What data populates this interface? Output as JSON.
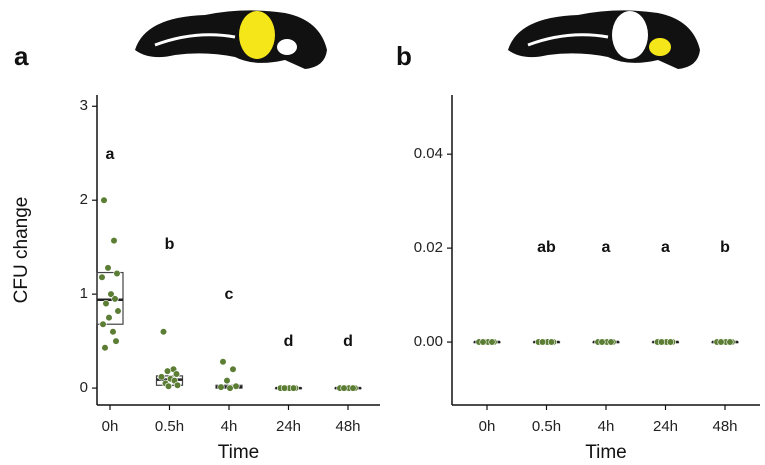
{
  "chart_data": [
    {
      "type": "box",
      "panel_label": "a",
      "y_label": "CFU change",
      "x_label": "Time",
      "categories": [
        "0h",
        "0.5h",
        "4h",
        "24h",
        "48h"
      ],
      "ylim": [
        -0.18,
        3.12
      ],
      "yticks": [
        0,
        1,
        2,
        3
      ],
      "point_color": "#5b7d34",
      "group_labels": [
        "a",
        "b",
        "c",
        "d",
        "d"
      ],
      "boxes": [
        {
          "q1": 0.68,
          "median": 0.94,
          "q3": 1.23
        },
        {
          "q1": 0.03,
          "median": 0.09,
          "q3": 0.13
        },
        {
          "q1": 0,
          "median": 0.01,
          "q3": 0.03
        },
        {
          "q1": 0,
          "median": 0,
          "q3": 0
        },
        {
          "q1": 0,
          "median": 0,
          "q3": 0
        }
      ],
      "points": [
        [
          2.0,
          1.57,
          1.28,
          1.22,
          1.18,
          1.0,
          0.95,
          0.9,
          0.82,
          0.75,
          0.68,
          0.6,
          0.5,
          0.43
        ],
        [
          0.6,
          0.2,
          0.18,
          0.15,
          0.12,
          0.1,
          0.08,
          0.05,
          0.03,
          0.02
        ],
        [
          0.28,
          0.2,
          0.08,
          0.02,
          0.01,
          0
        ],
        [
          0,
          0,
          0,
          0,
          0,
          0,
          0,
          0
        ],
        [
          0,
          0,
          0,
          0,
          0,
          0,
          0,
          0
        ]
      ]
    },
    {
      "type": "box",
      "panel_label": "b",
      "x_label": "Time",
      "categories": [
        "0h",
        "0.5h",
        "4h",
        "24h",
        "48h"
      ],
      "ylim": [
        -0.0134,
        0.0526
      ],
      "yticks": [
        {
          "value": 0,
          "label": "0.00"
        },
        {
          "value": 0.02,
          "label": "0.02"
        },
        {
          "value": 0.04,
          "label": "0.04"
        }
      ],
      "point_color": "#5b7d34",
      "group_labels": [
        null,
        "ab",
        "a",
        "a",
        "b"
      ],
      "boxes": [
        {
          "q1": 0,
          "median": 0,
          "q3": 0
        },
        {
          "q1": 0,
          "median": 0,
          "q3": 0
        },
        {
          "q1": 0,
          "median": 0,
          "q3": 0
        },
        {
          "q1": 0,
          "median": 0,
          "q3": 0
        },
        {
          "q1": 0,
          "median": 0,
          "q3": 0
        }
      ],
      "points": [
        [
          0,
          0,
          0,
          0,
          0,
          0,
          0,
          0
        ],
        [
          0,
          0,
          0,
          0,
          0,
          0,
          0,
          0
        ],
        [
          0,
          0,
          0,
          0,
          0,
          0,
          0,
          0
        ],
        [
          0,
          0,
          0,
          0,
          0,
          0,
          0,
          0
        ],
        [
          0,
          0,
          0,
          0,
          0,
          0,
          0,
          0
        ]
      ]
    }
  ]
}
